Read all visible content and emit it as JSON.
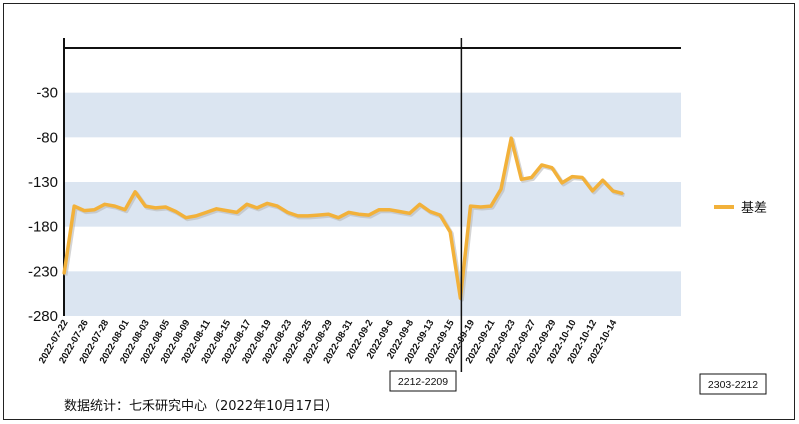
{
  "chart_data": {
    "type": "line",
    "title": "",
    "xlabel": "",
    "ylabel": "",
    "ylim": [
      -280,
      20
    ],
    "yticks": [
      -30,
      -80,
      -130,
      -180,
      -230,
      -280
    ],
    "grid_bands": true,
    "legend_position": "right",
    "colors": {
      "series": "#F2B13A",
      "band": "#DBE5F1",
      "axis": "#111111"
    },
    "x": [
      "2022-07-22",
      "2022-07-25",
      "2022-07-26",
      "2022-07-27",
      "2022-07-28",
      "2022-07-29",
      "2022-08-01",
      "2022-08-02",
      "2022-08-03",
      "2022-08-04",
      "2022-08-05",
      "2022-08-08",
      "2022-08-09",
      "2022-08-10",
      "2022-08-11",
      "2022-08-12",
      "2022-08-15",
      "2022-08-16",
      "2022-08-17",
      "2022-08-18",
      "2022-08-19",
      "2022-08-22",
      "2022-08-23",
      "2022-08-24",
      "2022-08-25",
      "2022-08-26",
      "2022-08-29",
      "2022-08-30",
      "2022-08-31",
      "2022-09-1",
      "2022-09-2",
      "2022-09-5",
      "2022-09-6",
      "2022-09-7",
      "2022-09-8",
      "2022-09-9",
      "2022-09-13",
      "2022-09-14",
      "2022-09-15",
      "2022-09-16",
      "2022-09-19",
      "2022-09-20",
      "2022-09-21",
      "2022-09-22",
      "2022-09-23",
      "2022-09-26",
      "2022-09-27",
      "2022-09-28",
      "2022-09-29",
      "2022-09-30",
      "2022-10-10",
      "2022-10-11",
      "2022-10-12",
      "2022-10-13",
      "2022-10-14",
      "2022-10-17"
    ],
    "xtick_labels": [
      "2022-07-22",
      "2022-07-26",
      "2022-07-28",
      "2022-08-01",
      "2022-08-03",
      "2022-08-05",
      "2022-08-09",
      "2022-08-11",
      "2022-08-15",
      "2022-08-17",
      "2022-08-19",
      "2022-08-23",
      "2022-08-25",
      "2022-08-29",
      "2022-08-31",
      "2022-09-2",
      "2022-09-6",
      "2022-09-8",
      "2022-09-13",
      "2022-09-15",
      "2022-09-19",
      "2022-09-21",
      "2022-09-23",
      "2022-09-27",
      "2022-09-29",
      "2022-10-10",
      "2022-10-12",
      "2022-10-14"
    ],
    "series": [
      {
        "name": "基差",
        "values": [
          -233,
          -157,
          -162,
          -161,
          -155,
          -157,
          -161,
          -141,
          -157,
          -159,
          -158,
          -163,
          -170,
          -168,
          -164,
          -160,
          -162,
          -164,
          -155,
          -159,
          -154,
          -157,
          -164,
          -168,
          -168,
          -167,
          -166,
          -170,
          -164,
          -166,
          -167,
          -161,
          -161,
          -163,
          -165,
          -155,
          -163,
          -167,
          -186,
          -260,
          -157,
          -158,
          -157,
          -138,
          -81,
          -127,
          -125,
          -111,
          -114,
          -131,
          -124,
          -125,
          -140,
          -128,
          -140,
          -143
        ]
      }
    ],
    "annotations": [
      {
        "label": "2212-2209",
        "at_index": 39
      },
      {
        "label": "2303-2212"
      }
    ],
    "source_note": "数据统计：七禾研究中心（2022年10月17日）"
  }
}
